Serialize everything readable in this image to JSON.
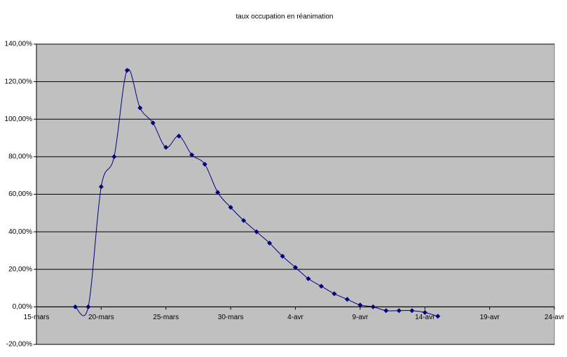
{
  "chart_data": {
    "type": "line",
    "title": "taux occupation en  réanimation",
    "categories": [
      "15-mars",
      null,
      null,
      null,
      null,
      "20-mars",
      null,
      null,
      null,
      null,
      "25-mars",
      null,
      null,
      null,
      null,
      "30-mars",
      null,
      null,
      null,
      null,
      "4-avr",
      null,
      null,
      null,
      null,
      "9-avr",
      null,
      null,
      null,
      null,
      "14-avr",
      null,
      null,
      null,
      null,
      "19-avr",
      null,
      null,
      null,
      null,
      "24-avr"
    ],
    "series": [
      {
        "name": "taux occupation en  réanimation",
        "color": "#000080",
        "values": [
          null,
          null,
          null,
          0,
          0,
          64,
          80,
          126,
          106,
          98,
          85,
          91,
          81,
          76,
          61,
          53,
          46,
          40,
          34,
          27,
          21,
          15,
          11,
          7,
          4,
          1,
          0,
          -2,
          -2,
          -2,
          -3,
          -5,
          null,
          null,
          null,
          null,
          null,
          null,
          null,
          null,
          null
        ]
      }
    ],
    "ylim": [
      -20,
      140
    ],
    "yticks": [
      {
        "value": -20,
        "label": "-20,00%"
      },
      {
        "value": 0,
        "label": "0,00%"
      },
      {
        "value": 20,
        "label": "20,00%"
      },
      {
        "value": 40,
        "label": "40,00%"
      },
      {
        "value": 60,
        "label": "60,00%"
      },
      {
        "value": 80,
        "label": "80,00%"
      },
      {
        "value": 100,
        "label": "100,00%"
      },
      {
        "value": 120,
        "label": "120,00%"
      },
      {
        "value": 140,
        "label": "140,00%"
      }
    ],
    "grid": true,
    "plot_background": "#c0c0c0"
  }
}
